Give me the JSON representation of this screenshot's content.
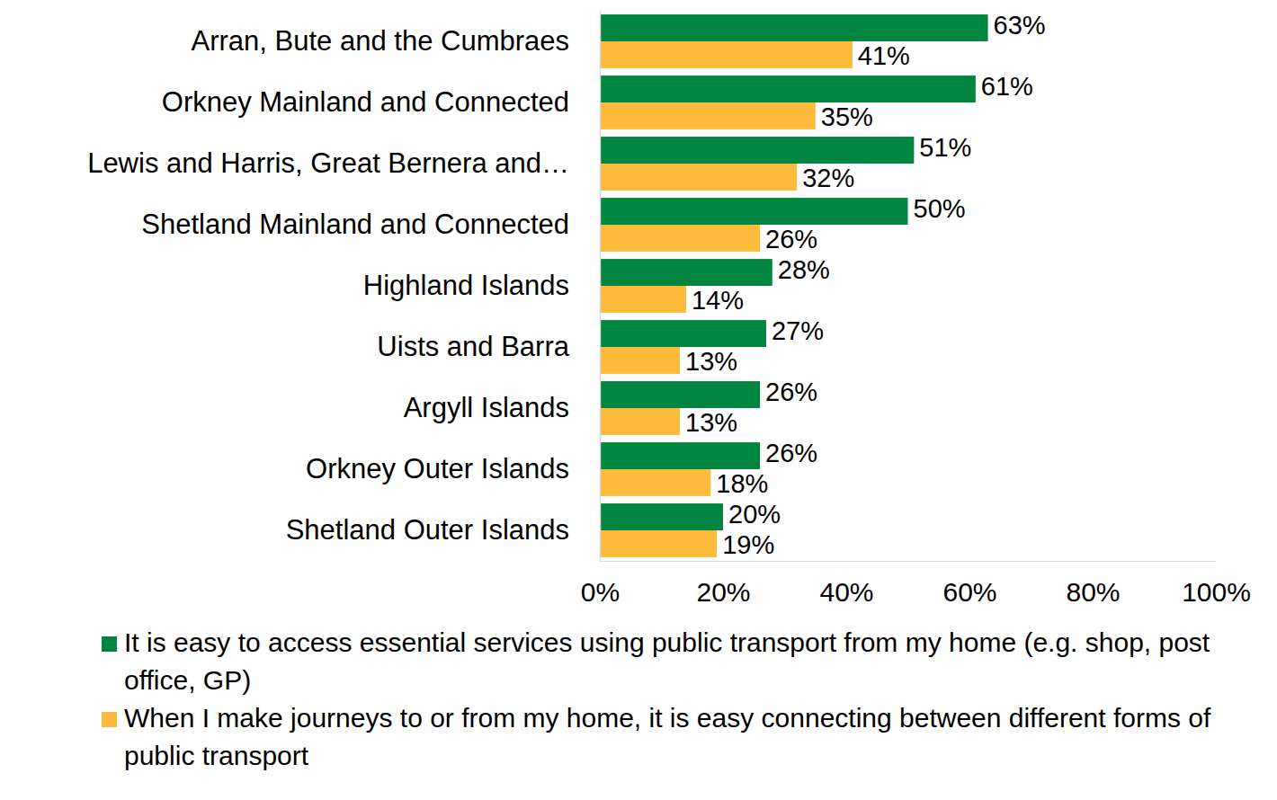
{
  "chart_data": {
    "type": "bar",
    "orientation": "horizontal",
    "data_labels": true,
    "grid": false,
    "legend": "bottom",
    "categories": [
      "Arran, Bute and the Cumbraes",
      "Orkney Mainland and Connected",
      "Lewis and Harris, Great Bernera and…",
      "Shetland Mainland and Connected",
      "Highland Islands",
      "Uists and Barra",
      "Argyll Islands",
      "Orkney Outer Islands",
      "Shetland Outer Islands"
    ],
    "series": [
      {
        "name": "It is easy to access essential services using public transport from my home (e.g. shop, post office, GP)",
        "color": "#008540",
        "values": [
          63,
          61,
          51,
          50,
          28,
          27,
          26,
          26,
          20
        ],
        "value_labels": [
          "63%",
          "61%",
          "51%",
          "50%",
          "28%",
          "27%",
          "26%",
          "26%",
          "20%"
        ]
      },
      {
        "name": "When I make journeys to or from my home, it is easy connecting between different forms of public transport",
        "color": "#fdbb3e",
        "values": [
          41,
          35,
          32,
          26,
          14,
          13,
          13,
          18,
          19
        ],
        "value_labels": [
          "41%",
          "35%",
          "32%",
          "26%",
          "14%",
          "13%",
          "13%",
          "18%",
          "19%"
        ]
      }
    ],
    "xlim": [
      0,
      100
    ],
    "xticks": [
      {
        "value": 0,
        "label": "0%"
      },
      {
        "value": 20,
        "label": "20%"
      },
      {
        "value": 40,
        "label": "40%"
      },
      {
        "value": 60,
        "label": "60%"
      },
      {
        "value": 80,
        "label": "80%"
      },
      {
        "value": 100,
        "label": "100%"
      }
    ]
  }
}
